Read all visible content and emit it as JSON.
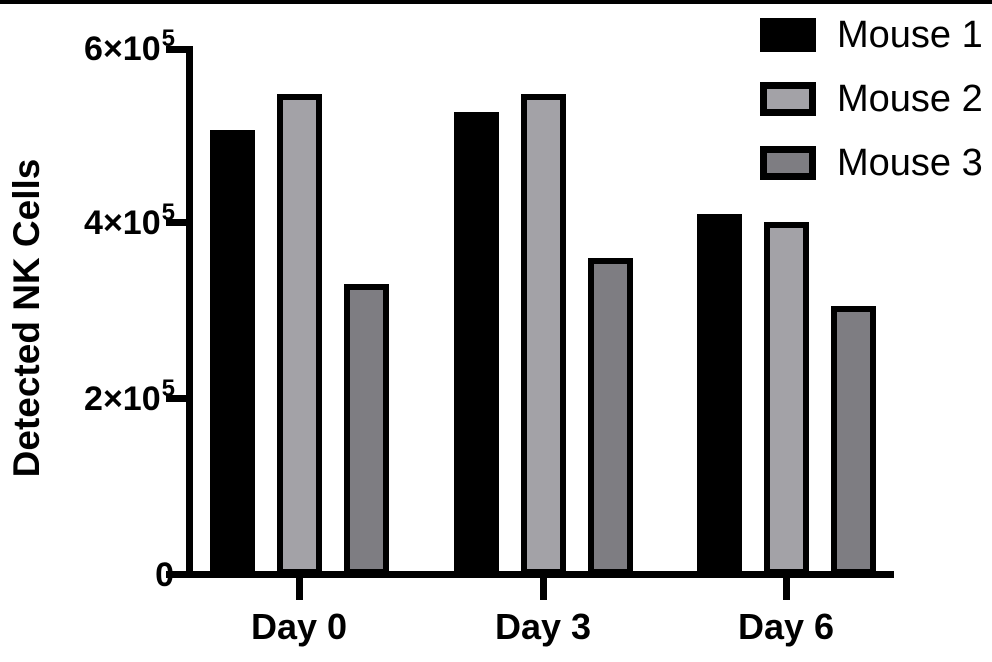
{
  "chart_data": {
    "type": "bar",
    "title": "",
    "ylabel": "Detected NK Cells",
    "xlabel": "",
    "categories": [
      "Day 0",
      "Day 3",
      "Day 6"
    ],
    "series": [
      {
        "name": "Mouse 1",
        "fill": "#000000",
        "border": "#000000",
        "values": [
          505000,
          525000,
          410000
        ]
      },
      {
        "name": "Mouse 2",
        "fill": "#a3a2a7",
        "border": "#000000",
        "values": [
          545000,
          545000,
          400000
        ]
      },
      {
        "name": "Mouse 3",
        "fill": "#7e7d82",
        "border": "#000000",
        "values": [
          330000,
          360000,
          305000
        ]
      }
    ],
    "ylim": [
      0,
      600000
    ],
    "yticks": [
      {
        "value": 600000,
        "label": "6×10",
        "exp": "5"
      },
      {
        "value": 400000,
        "label": "4×10",
        "exp": "5"
      },
      {
        "value": 200000,
        "label": "2×10",
        "exp": "5"
      },
      {
        "value": 0,
        "label": "0",
        "exp": ""
      }
    ],
    "legend": {
      "position": "top-right",
      "entries": [
        "Mouse 1",
        "Mouse 2",
        "Mouse 3"
      ]
    },
    "grid": false,
    "axis_color": "#000000",
    "background": "#ffffff"
  }
}
